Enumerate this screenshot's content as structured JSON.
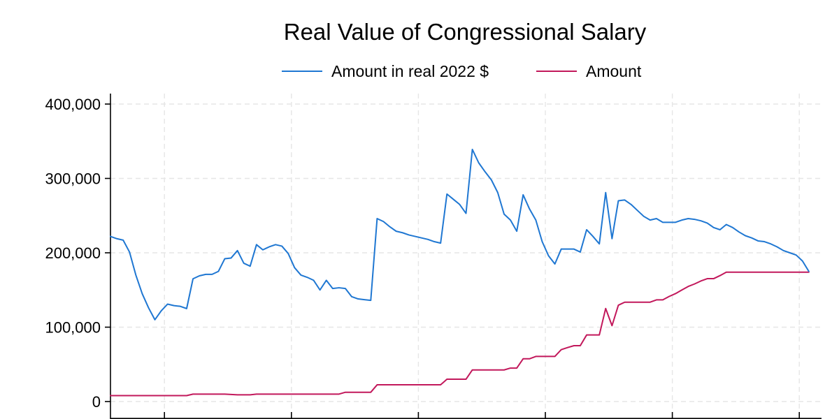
{
  "chart_data": {
    "type": "line",
    "title": "Real Value of Congressional Salary",
    "xlabel": "",
    "ylabel": "",
    "ylim": [
      0,
      400000
    ],
    "yticks": [
      0,
      100000,
      200000,
      300000,
      400000
    ],
    "ytick_labels": [
      "0",
      "100,000",
      "200,000",
      "300,000",
      "400,000"
    ],
    "xticks": [
      1860,
      1900,
      1940,
      1980,
      2020,
      2060
    ],
    "xlim": [
      1843,
      2067
    ],
    "grid": true,
    "legend_position": "top",
    "series": [
      {
        "name": "Amount in real 2022 $",
        "color": "#1f77d2",
        "points": [
          [
            1843,
            222000
          ],
          [
            1845,
            219000
          ],
          [
            1847,
            217000
          ],
          [
            1849,
            201000
          ],
          [
            1851,
            170000
          ],
          [
            1853,
            145000
          ],
          [
            1855,
            126000
          ],
          [
            1857,
            110000
          ],
          [
            1859,
            122000
          ],
          [
            1861,
            131000
          ],
          [
            1863,
            129000
          ],
          [
            1865,
            128000
          ],
          [
            1867,
            125000
          ],
          [
            1869,
            165000
          ],
          [
            1871,
            169000
          ],
          [
            1873,
            171000
          ],
          [
            1875,
            171000
          ],
          [
            1877,
            175000
          ],
          [
            1879,
            192000
          ],
          [
            1881,
            193000
          ],
          [
            1883,
            203000
          ],
          [
            1885,
            186000
          ],
          [
            1887,
            182000
          ],
          [
            1889,
            211000
          ],
          [
            1891,
            204000
          ],
          [
            1893,
            208000
          ],
          [
            1895,
            211000
          ],
          [
            1897,
            209000
          ],
          [
            1899,
            199000
          ],
          [
            1901,
            180000
          ],
          [
            1903,
            170000
          ],
          [
            1905,
            167000
          ],
          [
            1907,
            163000
          ],
          [
            1909,
            150000
          ],
          [
            1911,
            163000
          ],
          [
            1913,
            152000
          ],
          [
            1915,
            153000
          ],
          [
            1917,
            152000
          ],
          [
            1919,
            141000
          ],
          [
            1921,
            138000
          ],
          [
            1923,
            137000
          ],
          [
            1925,
            136000
          ],
          [
            1927,
            246000
          ],
          [
            1929,
            242000
          ],
          [
            1931,
            235000
          ],
          [
            1933,
            229000
          ],
          [
            1935,
            227000
          ],
          [
            1937,
            224000
          ],
          [
            1939,
            222000
          ],
          [
            1941,
            220000
          ],
          [
            1943,
            218000
          ],
          [
            1945,
            215000
          ],
          [
            1947,
            213000
          ],
          [
            1949,
            279000
          ],
          [
            1951,
            272000
          ],
          [
            1953,
            265000
          ],
          [
            1955,
            253000
          ],
          [
            1957,
            339000
          ],
          [
            1959,
            321000
          ],
          [
            1961,
            309000
          ],
          [
            1963,
            298000
          ],
          [
            1965,
            281000
          ],
          [
            1967,
            252000
          ],
          [
            1969,
            244000
          ],
          [
            1971,
            229000
          ],
          [
            1973,
            278000
          ],
          [
            1975,
            259000
          ],
          [
            1977,
            244000
          ],
          [
            1979,
            215000
          ],
          [
            1981,
            196000
          ],
          [
            1983,
            185000
          ],
          [
            1985,
            205000
          ],
          [
            1987,
            205000
          ],
          [
            1989,
            205000
          ],
          [
            1991,
            201000
          ],
          [
            1993,
            231000
          ],
          [
            1995,
            222000
          ],
          [
            1997,
            212000
          ],
          [
            1999,
            281000
          ],
          [
            2001,
            219000
          ],
          [
            2003,
            270000
          ],
          [
            2005,
            271000
          ],
          [
            2007,
            265000
          ],
          [
            2009,
            257000
          ],
          [
            2011,
            249000
          ],
          [
            2013,
            244000
          ],
          [
            2015,
            246000
          ],
          [
            2017,
            241000
          ],
          [
            2019,
            241000
          ],
          [
            2021,
            241000
          ],
          [
            2023,
            244000
          ],
          [
            2025,
            246000
          ],
          [
            2027,
            245000
          ],
          [
            2029,
            243000
          ],
          [
            2031,
            240000
          ],
          [
            2033,
            234000
          ],
          [
            2035,
            231000
          ],
          [
            2037,
            238000
          ],
          [
            2039,
            234000
          ],
          [
            2041,
            228000
          ],
          [
            2043,
            223000
          ],
          [
            2045,
            220000
          ],
          [
            2047,
            216000
          ],
          [
            2049,
            215000
          ],
          [
            2051,
            212000
          ],
          [
            2053,
            208000
          ],
          [
            2055,
            203000
          ],
          [
            2057,
            200000
          ],
          [
            2059,
            197000
          ],
          [
            2061,
            189000
          ],
          [
            2063,
            175000
          ]
        ]
      },
      {
        "name": "Amount",
        "color": "#c2185b",
        "points": [
          [
            1843,
            8000
          ],
          [
            1867,
            8000
          ],
          [
            1869,
            10000
          ],
          [
            1879,
            10000
          ],
          [
            1883,
            9000
          ],
          [
            1887,
            9000
          ],
          [
            1889,
            10000
          ],
          [
            1915,
            10000
          ],
          [
            1917,
            12500
          ],
          [
            1925,
            12500
          ],
          [
            1927,
            22500
          ],
          [
            1947,
            22500
          ],
          [
            1949,
            30000
          ],
          [
            1955,
            30000
          ],
          [
            1957,
            42500
          ],
          [
            1967,
            42500
          ],
          [
            1969,
            45000
          ],
          [
            1971,
            45000
          ],
          [
            1973,
            57500
          ],
          [
            1975,
            57500
          ],
          [
            1977,
            60663
          ],
          [
            1983,
            60663
          ],
          [
            1985,
            69800
          ],
          [
            1987,
            72600
          ],
          [
            1989,
            75100
          ],
          [
            1991,
            75100
          ],
          [
            1993,
            89500
          ],
          [
            1995,
            89500
          ],
          [
            1997,
            89500
          ],
          [
            1999,
            125100
          ],
          [
            2001,
            102000
          ],
          [
            2003,
            129500
          ],
          [
            2005,
            133600
          ],
          [
            2007,
            133600
          ],
          [
            2009,
            133600
          ],
          [
            2011,
            133600
          ],
          [
            2013,
            133600
          ],
          [
            2015,
            136700
          ],
          [
            2017,
            136700
          ],
          [
            2019,
            141300
          ],
          [
            2021,
            145100
          ],
          [
            2023,
            150000
          ],
          [
            2025,
            154700
          ],
          [
            2027,
            158100
          ],
          [
            2029,
            162100
          ],
          [
            2031,
            165200
          ],
          [
            2033,
            165200
          ],
          [
            2035,
            169300
          ],
          [
            2037,
            174000
          ],
          [
            2063,
            174000
          ]
        ]
      }
    ]
  }
}
